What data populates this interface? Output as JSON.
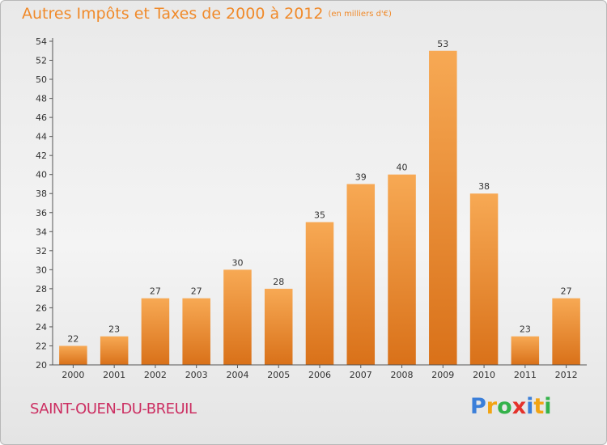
{
  "header": {
    "title": "Autres Impôts et Taxes de 2000 à 2012",
    "subtitle": "(en milliers d'€)"
  },
  "footer": {
    "commune": "SAINT-OUEN-DU-BREUIL",
    "logo_letters": [
      "P",
      "r",
      "o",
      "x",
      "i",
      "t",
      "i"
    ],
    "logo_colors": [
      "#3b7fd9",
      "#f2a413",
      "#34b24a",
      "#e4322b",
      "#3b7fd9",
      "#f2a413",
      "#34b24a"
    ]
  },
  "colors": {
    "bar_top": "#f7a954",
    "bar_bottom": "#d97119",
    "title": "#f08a2a",
    "commune": "#cc2f62"
  },
  "chart_data": {
    "type": "bar",
    "title": "Autres Impôts et Taxes de 2000 à 2012",
    "subtitle": "(en milliers d'€)",
    "categories": [
      "2000",
      "2001",
      "2002",
      "2003",
      "2004",
      "2005",
      "2006",
      "2007",
      "2008",
      "2009",
      "2010",
      "2011",
      "2012"
    ],
    "values": [
      22,
      23,
      27,
      27,
      30,
      28,
      35,
      39,
      40,
      53,
      38,
      23,
      27
    ],
    "ylim": [
      20,
      54
    ],
    "ytick_step": 2,
    "grid": false,
    "legend": "none"
  }
}
